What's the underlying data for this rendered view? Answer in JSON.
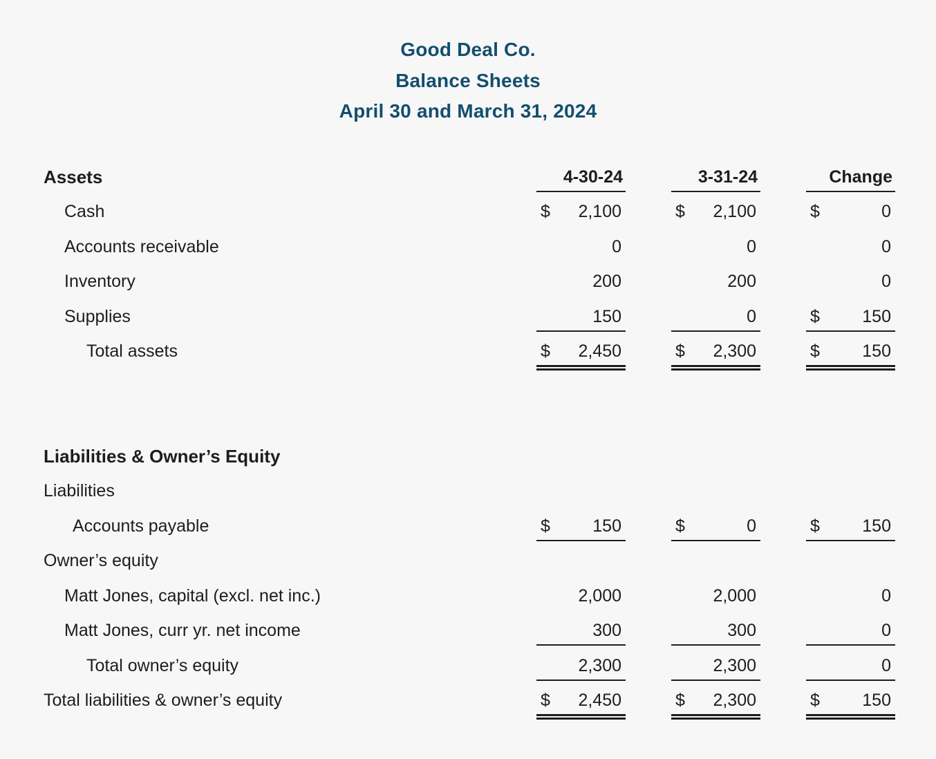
{
  "header": {
    "company": "Good Deal Co.",
    "report": "Balance Sheets",
    "dates": "April 30 and March 31, 2024"
  },
  "columns": [
    "4-30-24",
    "3-31-24",
    "Change"
  ],
  "rows": [
    {
      "label": "Assets"
    },
    {
      "label": "Cash",
      "c1": {
        "d": "$",
        "v": "2,100"
      },
      "c2": {
        "d": "$",
        "v": "2,100"
      },
      "c3": {
        "d": "$",
        "v": "0"
      }
    },
    {
      "label": "Accounts receivable",
      "c1": {
        "d": "",
        "v": "0"
      },
      "c2": {
        "d": "",
        "v": "0"
      },
      "c3": {
        "d": "",
        "v": "0"
      }
    },
    {
      "label": "Inventory",
      "c1": {
        "d": "",
        "v": "200"
      },
      "c2": {
        "d": "",
        "v": "200"
      },
      "c3": {
        "d": "",
        "v": "0"
      }
    },
    {
      "label": "Supplies",
      "c1": {
        "d": "",
        "v": "150"
      },
      "c2": {
        "d": "",
        "v": "0"
      },
      "c3": {
        "d": "$",
        "v": "150"
      }
    },
    {
      "label": "Total assets",
      "c1": {
        "d": "$",
        "v": "2,450"
      },
      "c2": {
        "d": "$",
        "v": "2,300"
      },
      "c3": {
        "d": "$",
        "v": "150"
      }
    },
    {
      "label": "Liabilities & Owner’s Equity"
    },
    {
      "label": "Liabilities"
    },
    {
      "label": "Accounts payable",
      "c1": {
        "d": "$",
        "v": "150"
      },
      "c2": {
        "d": "$",
        "v": "0"
      },
      "c3": {
        "d": "$",
        "v": "150"
      }
    },
    {
      "label": "Owner’s equity"
    },
    {
      "label": "Matt Jones, capital (excl. net inc.)",
      "c1": {
        "d": "",
        "v": "2,000"
      },
      "c2": {
        "d": "",
        "v": "2,000"
      },
      "c3": {
        "d": "",
        "v": "0"
      }
    },
    {
      "label": "Matt Jones, curr yr. net income",
      "c1": {
        "d": "",
        "v": "300"
      },
      "c2": {
        "d": "",
        "v": "300"
      },
      "c3": {
        "d": "",
        "v": "0"
      }
    },
    {
      "label": "Total owner’s equity",
      "c1": {
        "d": "",
        "v": "2,300"
      },
      "c2": {
        "d": "",
        "v": "2,300"
      },
      "c3": {
        "d": "",
        "v": "0"
      }
    },
    {
      "label": "Total liabilities & owner’s equity",
      "c1": {
        "d": "$",
        "v": "2,450"
      },
      "c2": {
        "d": "$",
        "v": "2,300"
      },
      "c3": {
        "d": "$",
        "v": "150"
      }
    }
  ],
  "colors": {
    "title_text": "#134e6d",
    "body_text": "#1d1d1d",
    "rule": "#1d1d1d",
    "background": "#f7f7f8"
  }
}
